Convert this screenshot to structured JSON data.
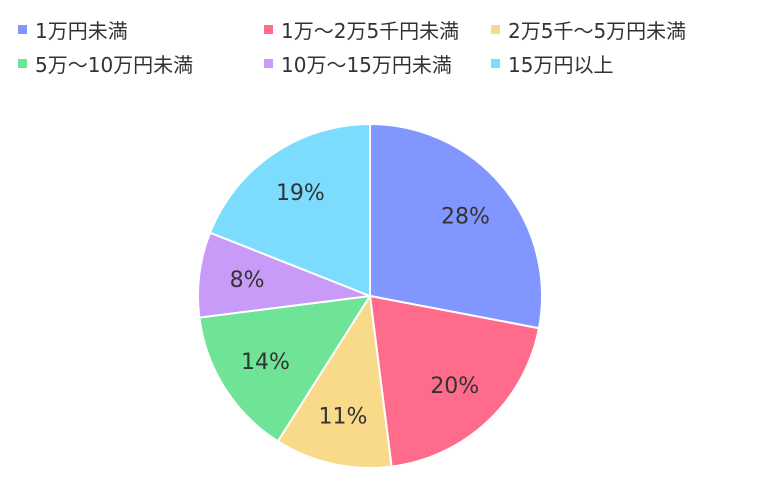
{
  "chart_data": {
    "type": "pie",
    "title": "",
    "legend_position": "top",
    "categories": [
      "1万円未満",
      "1万～2万5千円未満",
      "2万5千～5万円未満",
      "5万～10万円未満",
      "10万～15万円未満",
      "15万円以上"
    ],
    "values": [
      28,
      20,
      11,
      14,
      8,
      19
    ],
    "value_labels": [
      "28%",
      "20%",
      "11%",
      "14%",
      "8%",
      "19%"
    ],
    "colors": [
      "#8197ff",
      "#ff6b8a",
      "#f9d98a",
      "#6fe396",
      "#c89bf8",
      "#7cdcfd"
    ]
  }
}
